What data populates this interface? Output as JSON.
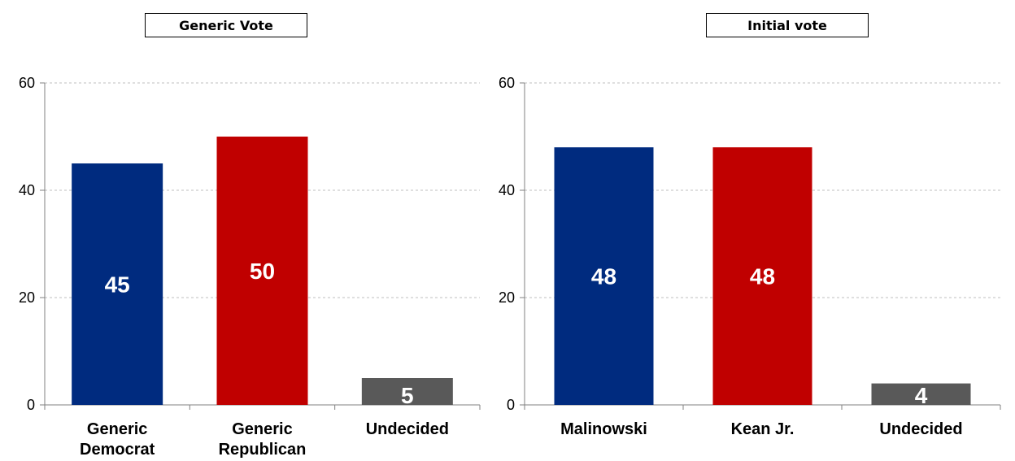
{
  "chart_data": [
    {
      "type": "bar",
      "title": "Generic Vote",
      "categories": [
        [
          "Generic",
          "Democrat"
        ],
        [
          "Generic",
          "Republican"
        ],
        [
          "Undecided"
        ]
      ],
      "values": [
        45,
        50,
        5
      ],
      "data_labels": [
        "45",
        "50",
        "5"
      ],
      "colors": [
        "#002B7F",
        "#C00000",
        "#595959"
      ],
      "ylim": [
        0,
        60
      ],
      "yticks": [
        "0",
        "20",
        "40",
        "60"
      ],
      "grid": true,
      "legend": "none"
    },
    {
      "type": "bar",
      "title": "Initial vote",
      "categories": [
        [
          "Malinowski"
        ],
        [
          "Kean Jr."
        ],
        [
          "Undecided"
        ]
      ],
      "values": [
        48,
        48,
        4
      ],
      "data_labels": [
        "48",
        "48",
        "4"
      ],
      "colors": [
        "#002B7F",
        "#C00000",
        "#595959"
      ],
      "ylim": [
        0,
        60
      ],
      "yticks": [
        "0",
        "20",
        "40",
        "60"
      ],
      "grid": true,
      "legend": "none"
    }
  ]
}
